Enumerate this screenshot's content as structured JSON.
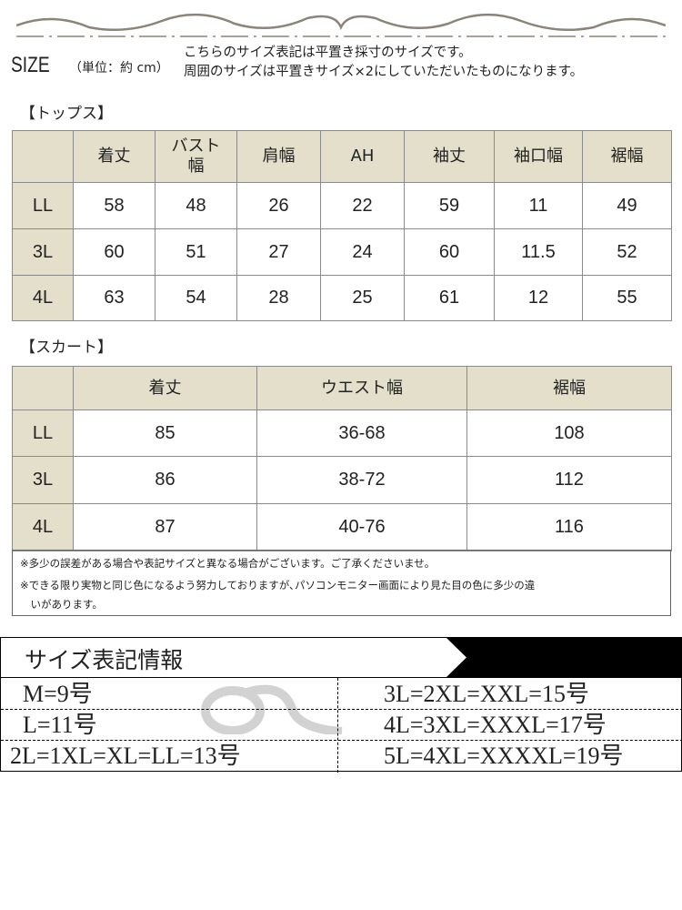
{
  "header": {
    "size_label": "SIZE",
    "unit": "（単位：約 cm）",
    "intro": [
      "こちらのサイズ表記は平置き採寸のサイズです。",
      "周囲のサイズは平置きサイズ×2にしていただいたものになります。"
    ]
  },
  "tops": {
    "title": "【トップス】",
    "columns": [
      "",
      "着丈",
      "バスト幅",
      "肩幅",
      "AH",
      "袖丈",
      "袖口幅",
      "裾幅"
    ],
    "rows": [
      [
        "LL",
        "58",
        "48",
        "26",
        "22",
        "59",
        "11",
        "49"
      ],
      [
        "3L",
        "60",
        "51",
        "27",
        "24",
        "60",
        "11.5",
        "52"
      ],
      [
        "4L",
        "63",
        "54",
        "28",
        "25",
        "61",
        "12",
        "55"
      ]
    ]
  },
  "skirt": {
    "title": "【スカート】",
    "columns": [
      "",
      "着丈",
      "ウエスト幅",
      "裾幅"
    ],
    "rows": [
      [
        "LL",
        "85",
        "36-68",
        "108"
      ],
      [
        "3L",
        "86",
        "38-72",
        "112"
      ],
      [
        "4L",
        "87",
        "40-76",
        "116"
      ]
    ]
  },
  "notes": [
    "※多少の誤差がある場合や表記サイズと異なる場合がございます。ご了承くださいませ。",
    "※できる限り実物と同じ色になるよう努力しておりますが､パソコンモニター画面により見た目の色に多少の違",
    "　いがあります。"
  ],
  "size_info": {
    "title": "サイズ表記情報",
    "left": [
      "M=9号",
      "L=11号",
      "2L=1XL=XL=LL=13号"
    ],
    "right": [
      "3L=2XL=XXL=15号",
      "4L=3XL=XXXL=17号",
      "5L=4XL=XXXXL=19号"
    ]
  },
  "colors": {
    "header_bg": "#e3dfca",
    "border": "#8a8a8a",
    "banner": "#000000"
  }
}
